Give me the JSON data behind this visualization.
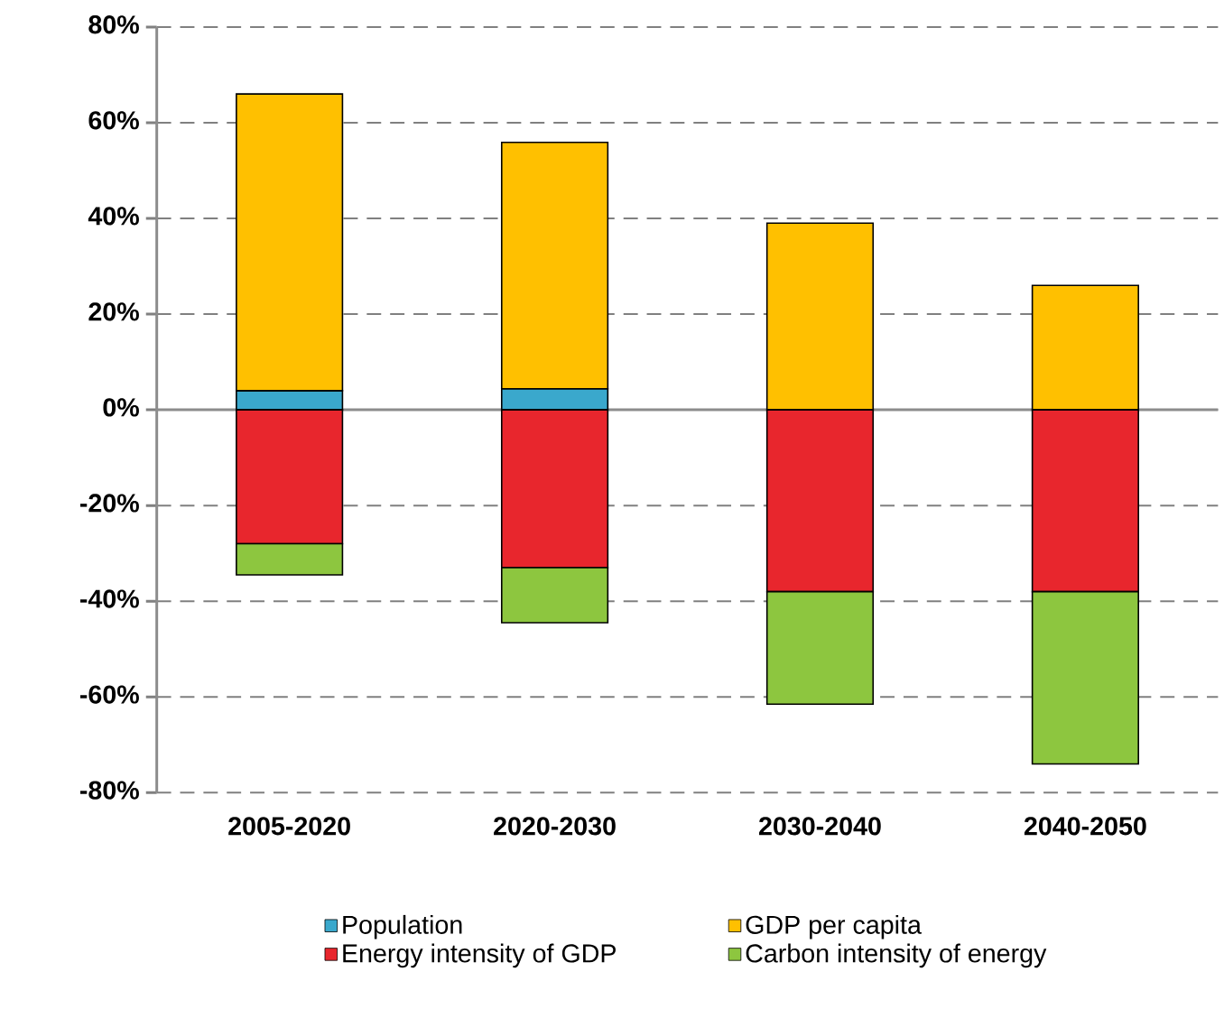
{
  "chart_data": {
    "type": "bar",
    "stacked": true,
    "categories": [
      "2005-2020",
      "2020-2030",
      "2030-2040",
      "2040-2050"
    ],
    "series": [
      {
        "name": "Population",
        "color": "#3aa8cc",
        "values": [
          4,
          4.4,
          null,
          null
        ]
      },
      {
        "name": "GDP per capita",
        "color": "#ffc000",
        "values": [
          62,
          51.5,
          39,
          26
        ]
      },
      {
        "name": "Energy intensity of GDP",
        "color": "#e8262d",
        "values": [
          -28,
          -33,
          -38,
          -38
        ]
      },
      {
        "name": "Carbon intensity of energy",
        "color": "#8dc63f",
        "values": [
          -6.5,
          -11.5,
          -23.5,
          -36
        ]
      }
    ],
    "ylim": [
      -80,
      80
    ],
    "yticks": [
      {
        "value": -80,
        "label": "-80%"
      },
      {
        "value": -60,
        "label": "-60%"
      },
      {
        "value": -40,
        "label": "-40%"
      },
      {
        "value": -20,
        "label": "-20%"
      },
      {
        "value": 0,
        "label": "0%"
      },
      {
        "value": 20,
        "label": "20%"
      },
      {
        "value": 40,
        "label": "40%"
      },
      {
        "value": 60,
        "label": "60%"
      },
      {
        "value": 80,
        "label": "80%"
      }
    ],
    "grid": "y",
    "legend": "bottom"
  }
}
